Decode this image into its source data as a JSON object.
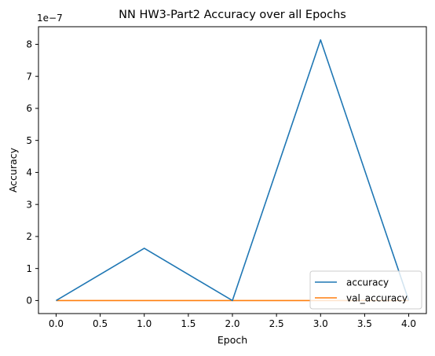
{
  "chart_data": {
    "type": "line",
    "title": "NN HW3-Part2 Accuracy over all Epochs",
    "xlabel": "Epoch",
    "ylabel": "Accuracy",
    "y_offset_text": "1e−7",
    "xlim": [
      -0.2,
      4.2
    ],
    "ylim": [
      -0.407,
      8.55
    ],
    "y_scale_multiplier": 1e-07,
    "xticks": [
      0.0,
      0.5,
      1.0,
      1.5,
      2.0,
      2.5,
      3.0,
      3.5,
      4.0
    ],
    "xtick_labels": [
      "0.0",
      "0.5",
      "1.0",
      "1.5",
      "2.0",
      "2.5",
      "3.0",
      "3.5",
      "4.0"
    ],
    "yticks": [
      0,
      1,
      2,
      3,
      4,
      5,
      6,
      7,
      8
    ],
    "ytick_labels": [
      "0",
      "1",
      "2",
      "3",
      "4",
      "5",
      "6",
      "7",
      "8"
    ],
    "x": [
      0,
      1,
      2,
      3,
      4
    ],
    "series": [
      {
        "name": "accuracy",
        "color": "#1f77b4",
        "values": [
          0.0,
          1.63,
          0.0,
          8.14,
          0.0
        ]
      },
      {
        "name": "val_accuracy",
        "color": "#ff7f0e",
        "values": [
          0.0,
          0.0,
          0.0,
          0.0,
          0.0
        ]
      }
    ],
    "legend_position": "lower right",
    "grid": false
  }
}
